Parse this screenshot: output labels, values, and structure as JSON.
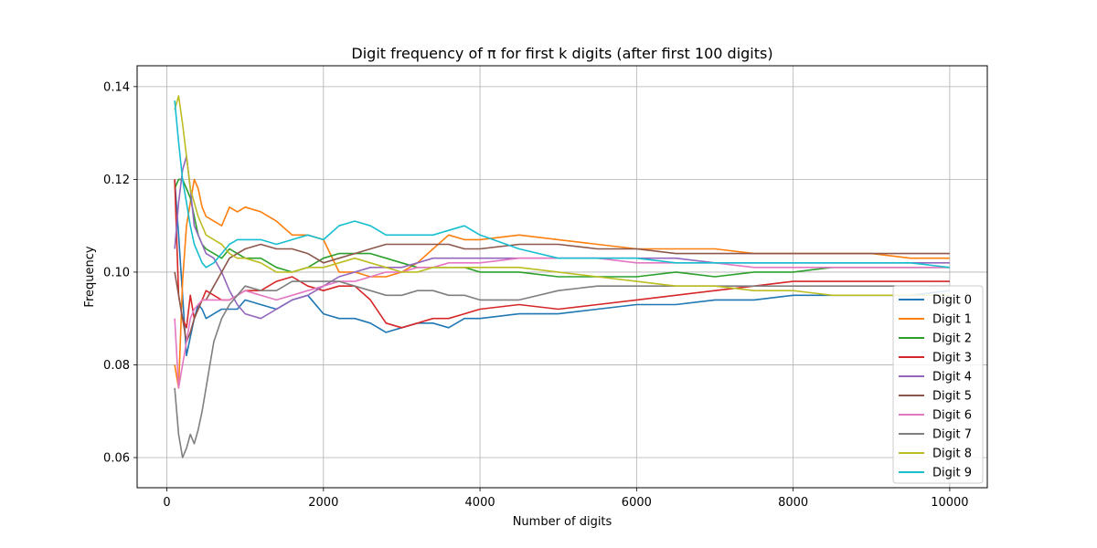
{
  "chart_data": {
    "type": "line",
    "title": "Digit frequency of π for first k digits (after first 100 digits)",
    "xlabel": "Number of digits",
    "ylabel": "Frequency",
    "xlim": [
      -380,
      10480
    ],
    "ylim": [
      0.0535,
      0.1445
    ],
    "xticks": [
      0,
      2000,
      4000,
      6000,
      8000,
      10000
    ],
    "yticks": [
      0.06,
      0.08,
      0.1,
      0.12,
      0.14
    ],
    "ytick_labels": [
      "0.06",
      "0.08",
      "0.10",
      "0.12",
      "0.14"
    ],
    "grid": true,
    "legend_position": "lower-right",
    "series": [
      {
        "name": "Digit 0",
        "color": "#1f77b4",
        "x": [
          100,
          150,
          200,
          250,
          300,
          350,
          400,
          450,
          500,
          600,
          700,
          800,
          900,
          1000,
          1200,
          1400,
          1600,
          1800,
          2000,
          2200,
          2400,
          2600,
          2800,
          3000,
          3200,
          3400,
          3600,
          3800,
          4000,
          4500,
          5000,
          5500,
          6000,
          6500,
          7000,
          7500,
          8000,
          8500,
          9000,
          9500,
          10000
        ],
        "y": [
          0.12,
          0.108,
          0.095,
          0.082,
          0.086,
          0.09,
          0.093,
          0.092,
          0.09,
          0.091,
          0.092,
          0.092,
          0.092,
          0.094,
          0.093,
          0.092,
          0.094,
          0.095,
          0.091,
          0.09,
          0.09,
          0.089,
          0.087,
          0.088,
          0.089,
          0.089,
          0.088,
          0.09,
          0.09,
          0.091,
          0.091,
          0.092,
          0.093,
          0.093,
          0.094,
          0.094,
          0.095,
          0.095,
          0.095,
          0.095,
          0.096
        ]
      },
      {
        "name": "Digit 1",
        "color": "#ff7f0e",
        "x": [
          100,
          150,
          200,
          250,
          300,
          350,
          400,
          450,
          500,
          600,
          700,
          800,
          900,
          1000,
          1200,
          1400,
          1600,
          1800,
          2000,
          2200,
          2400,
          2600,
          2800,
          3000,
          3200,
          3400,
          3600,
          3800,
          4000,
          4500,
          5000,
          5500,
          6000,
          6500,
          7000,
          7500,
          8000,
          8500,
          9000,
          9500,
          10000
        ],
        "y": [
          0.08,
          0.075,
          0.098,
          0.11,
          0.115,
          0.12,
          0.118,
          0.114,
          0.112,
          0.111,
          0.11,
          0.114,
          0.113,
          0.114,
          0.113,
          0.111,
          0.108,
          0.108,
          0.107,
          0.1,
          0.1,
          0.099,
          0.099,
          0.1,
          0.102,
          0.105,
          0.108,
          0.107,
          0.107,
          0.108,
          0.107,
          0.106,
          0.105,
          0.105,
          0.105,
          0.104,
          0.104,
          0.104,
          0.104,
          0.103,
          0.103
        ]
      },
      {
        "name": "Digit 2",
        "color": "#2ca02c",
        "x": [
          100,
          150,
          200,
          250,
          300,
          350,
          400,
          450,
          500,
          600,
          700,
          800,
          900,
          1000,
          1200,
          1400,
          1600,
          1800,
          2000,
          2200,
          2400,
          2600,
          2800,
          3000,
          3200,
          3400,
          3600,
          3800,
          4000,
          4500,
          5000,
          5500,
          6000,
          6500,
          7000,
          7500,
          8000,
          8500,
          9000,
          9500,
          10000
        ],
        "y": [
          0.118,
          0.12,
          0.12,
          0.118,
          0.116,
          0.112,
          0.108,
          0.106,
          0.105,
          0.104,
          0.103,
          0.105,
          0.104,
          0.103,
          0.103,
          0.101,
          0.1,
          0.101,
          0.103,
          0.104,
          0.104,
          0.104,
          0.103,
          0.102,
          0.101,
          0.101,
          0.101,
          0.101,
          0.1,
          0.1,
          0.099,
          0.099,
          0.099,
          0.1,
          0.099,
          0.1,
          0.1,
          0.101,
          0.101,
          0.101,
          0.101
        ]
      },
      {
        "name": "Digit 3",
        "color": "#d62728",
        "x": [
          100,
          150,
          200,
          250,
          300,
          350,
          400,
          450,
          500,
          600,
          700,
          800,
          900,
          1000,
          1200,
          1400,
          1600,
          1800,
          2000,
          2200,
          2400,
          2600,
          2800,
          3000,
          3200,
          3400,
          3600,
          3800,
          4000,
          4500,
          5000,
          5500,
          6000,
          6500,
          7000,
          7500,
          8000,
          8500,
          9000,
          9500,
          10000
        ],
        "y": [
          0.12,
          0.095,
          0.09,
          0.088,
          0.095,
          0.09,
          0.092,
          0.094,
          0.096,
          0.095,
          0.094,
          0.094,
          0.095,
          0.096,
          0.096,
          0.098,
          0.099,
          0.097,
          0.096,
          0.097,
          0.097,
          0.094,
          0.089,
          0.088,
          0.089,
          0.09,
          0.09,
          0.091,
          0.092,
          0.093,
          0.092,
          0.093,
          0.094,
          0.095,
          0.096,
          0.097,
          0.098,
          0.098,
          0.098,
          0.098,
          0.098
        ]
      },
      {
        "name": "Digit 4",
        "color": "#9467bd",
        "x": [
          100,
          150,
          200,
          250,
          300,
          350,
          400,
          450,
          500,
          600,
          700,
          800,
          900,
          1000,
          1200,
          1400,
          1600,
          1800,
          2000,
          2200,
          2400,
          2600,
          2800,
          3000,
          3200,
          3400,
          3600,
          3800,
          4000,
          4500,
          5000,
          5500,
          6000,
          6500,
          7000,
          7500,
          8000,
          8500,
          9000,
          9500,
          10000
        ],
        "y": [
          0.105,
          0.115,
          0.122,
          0.125,
          0.118,
          0.11,
          0.108,
          0.106,
          0.104,
          0.103,
          0.1,
          0.096,
          0.093,
          0.091,
          0.09,
          0.092,
          0.094,
          0.095,
          0.097,
          0.099,
          0.1,
          0.101,
          0.101,
          0.101,
          0.102,
          0.103,
          0.103,
          0.103,
          0.103,
          0.103,
          0.103,
          0.103,
          0.103,
          0.103,
          0.102,
          0.102,
          0.102,
          0.102,
          0.102,
          0.102,
          0.102
        ]
      },
      {
        "name": "Digit 5",
        "color": "#8c564b",
        "x": [
          100,
          150,
          200,
          250,
          300,
          350,
          400,
          450,
          500,
          600,
          700,
          800,
          900,
          1000,
          1200,
          1400,
          1600,
          1800,
          2000,
          2200,
          2400,
          2600,
          2800,
          3000,
          3200,
          3400,
          3600,
          3800,
          4000,
          4500,
          5000,
          5500,
          6000,
          6500,
          7000,
          7500,
          8000,
          8500,
          9000,
          9500,
          10000
        ],
        "y": [
          0.1,
          0.095,
          0.09,
          0.085,
          0.087,
          0.09,
          0.092,
          0.094,
          0.094,
          0.097,
          0.1,
          0.103,
          0.104,
          0.105,
          0.106,
          0.105,
          0.105,
          0.104,
          0.102,
          0.103,
          0.104,
          0.105,
          0.106,
          0.106,
          0.106,
          0.106,
          0.106,
          0.105,
          0.105,
          0.106,
          0.106,
          0.105,
          0.105,
          0.104,
          0.104,
          0.104,
          0.104,
          0.104,
          0.104,
          0.104,
          0.104
        ]
      },
      {
        "name": "Digit 6",
        "color": "#e377c2",
        "x": [
          100,
          150,
          200,
          250,
          300,
          350,
          400,
          450,
          500,
          600,
          700,
          800,
          900,
          1000,
          1200,
          1400,
          1600,
          1800,
          2000,
          2200,
          2400,
          2600,
          2800,
          3000,
          3200,
          3400,
          3600,
          3800,
          4000,
          4500,
          5000,
          5500,
          6000,
          6500,
          7000,
          7500,
          8000,
          8500,
          9000,
          9500,
          10000
        ],
        "y": [
          0.09,
          0.075,
          0.08,
          0.085,
          0.09,
          0.092,
          0.093,
          0.094,
          0.094,
          0.094,
          0.094,
          0.094,
          0.095,
          0.096,
          0.095,
          0.094,
          0.095,
          0.096,
          0.097,
          0.098,
          0.098,
          0.099,
          0.1,
          0.1,
          0.101,
          0.101,
          0.102,
          0.102,
          0.102,
          0.103,
          0.103,
          0.103,
          0.102,
          0.102,
          0.102,
          0.101,
          0.101,
          0.101,
          0.101,
          0.101,
          0.101
        ]
      },
      {
        "name": "Digit 7",
        "color": "#7f7f7f",
        "x": [
          100,
          150,
          200,
          250,
          300,
          350,
          400,
          450,
          500,
          550,
          600,
          700,
          800,
          900,
          1000,
          1200,
          1400,
          1600,
          1800,
          2000,
          2200,
          2400,
          2600,
          2800,
          3000,
          3200,
          3400,
          3600,
          3800,
          4000,
          4500,
          5000,
          5500,
          6000,
          6500,
          7000,
          7500,
          8000,
          8500,
          9000,
          9500,
          10000
        ],
        "y": [
          0.075,
          0.065,
          0.06,
          0.062,
          0.065,
          0.063,
          0.066,
          0.07,
          0.075,
          0.08,
          0.085,
          0.09,
          0.093,
          0.095,
          0.097,
          0.096,
          0.096,
          0.098,
          0.098,
          0.098,
          0.098,
          0.097,
          0.096,
          0.095,
          0.095,
          0.096,
          0.096,
          0.095,
          0.095,
          0.094,
          0.094,
          0.096,
          0.097,
          0.097,
          0.097,
          0.097,
          0.097,
          0.097,
          0.097,
          0.097,
          0.097,
          0.097
        ]
      },
      {
        "name": "Digit 8",
        "color": "#bcbd22",
        "x": [
          100,
          150,
          200,
          250,
          300,
          350,
          400,
          450,
          500,
          600,
          700,
          800,
          900,
          1000,
          1200,
          1400,
          1600,
          1800,
          2000,
          2200,
          2400,
          2600,
          2800,
          3000,
          3200,
          3400,
          3600,
          3800,
          4000,
          4500,
          5000,
          5500,
          6000,
          6500,
          7000,
          7500,
          8000,
          8500,
          9000,
          9500,
          10000
        ],
        "y": [
          0.135,
          0.138,
          0.132,
          0.125,
          0.118,
          0.115,
          0.112,
          0.11,
          0.108,
          0.107,
          0.106,
          0.104,
          0.103,
          0.103,
          0.102,
          0.1,
          0.1,
          0.101,
          0.101,
          0.102,
          0.103,
          0.102,
          0.101,
          0.1,
          0.1,
          0.101,
          0.101,
          0.101,
          0.101,
          0.101,
          0.1,
          0.099,
          0.098,
          0.097,
          0.097,
          0.096,
          0.096,
          0.095,
          0.095,
          0.095,
          0.095
        ]
      },
      {
        "name": "Digit 9",
        "color": "#17becf",
        "x": [
          100,
          150,
          200,
          250,
          300,
          350,
          400,
          450,
          500,
          600,
          700,
          800,
          900,
          1000,
          1200,
          1400,
          1600,
          1800,
          2000,
          2200,
          2400,
          2600,
          2800,
          3000,
          3200,
          3400,
          3600,
          3800,
          4000,
          4500,
          5000,
          5500,
          6000,
          6500,
          7000,
          7500,
          8000,
          8500,
          9000,
          9500,
          10000
        ],
        "y": [
          0.137,
          0.128,
          0.12,
          0.115,
          0.11,
          0.106,
          0.104,
          0.102,
          0.101,
          0.102,
          0.104,
          0.106,
          0.107,
          0.107,
          0.107,
          0.106,
          0.107,
          0.108,
          0.107,
          0.11,
          0.111,
          0.11,
          0.108,
          0.108,
          0.108,
          0.108,
          0.109,
          0.11,
          0.108,
          0.105,
          0.103,
          0.103,
          0.103,
          0.102,
          0.102,
          0.102,
          0.102,
          0.102,
          0.102,
          0.102,
          0.101
        ]
      }
    ]
  }
}
